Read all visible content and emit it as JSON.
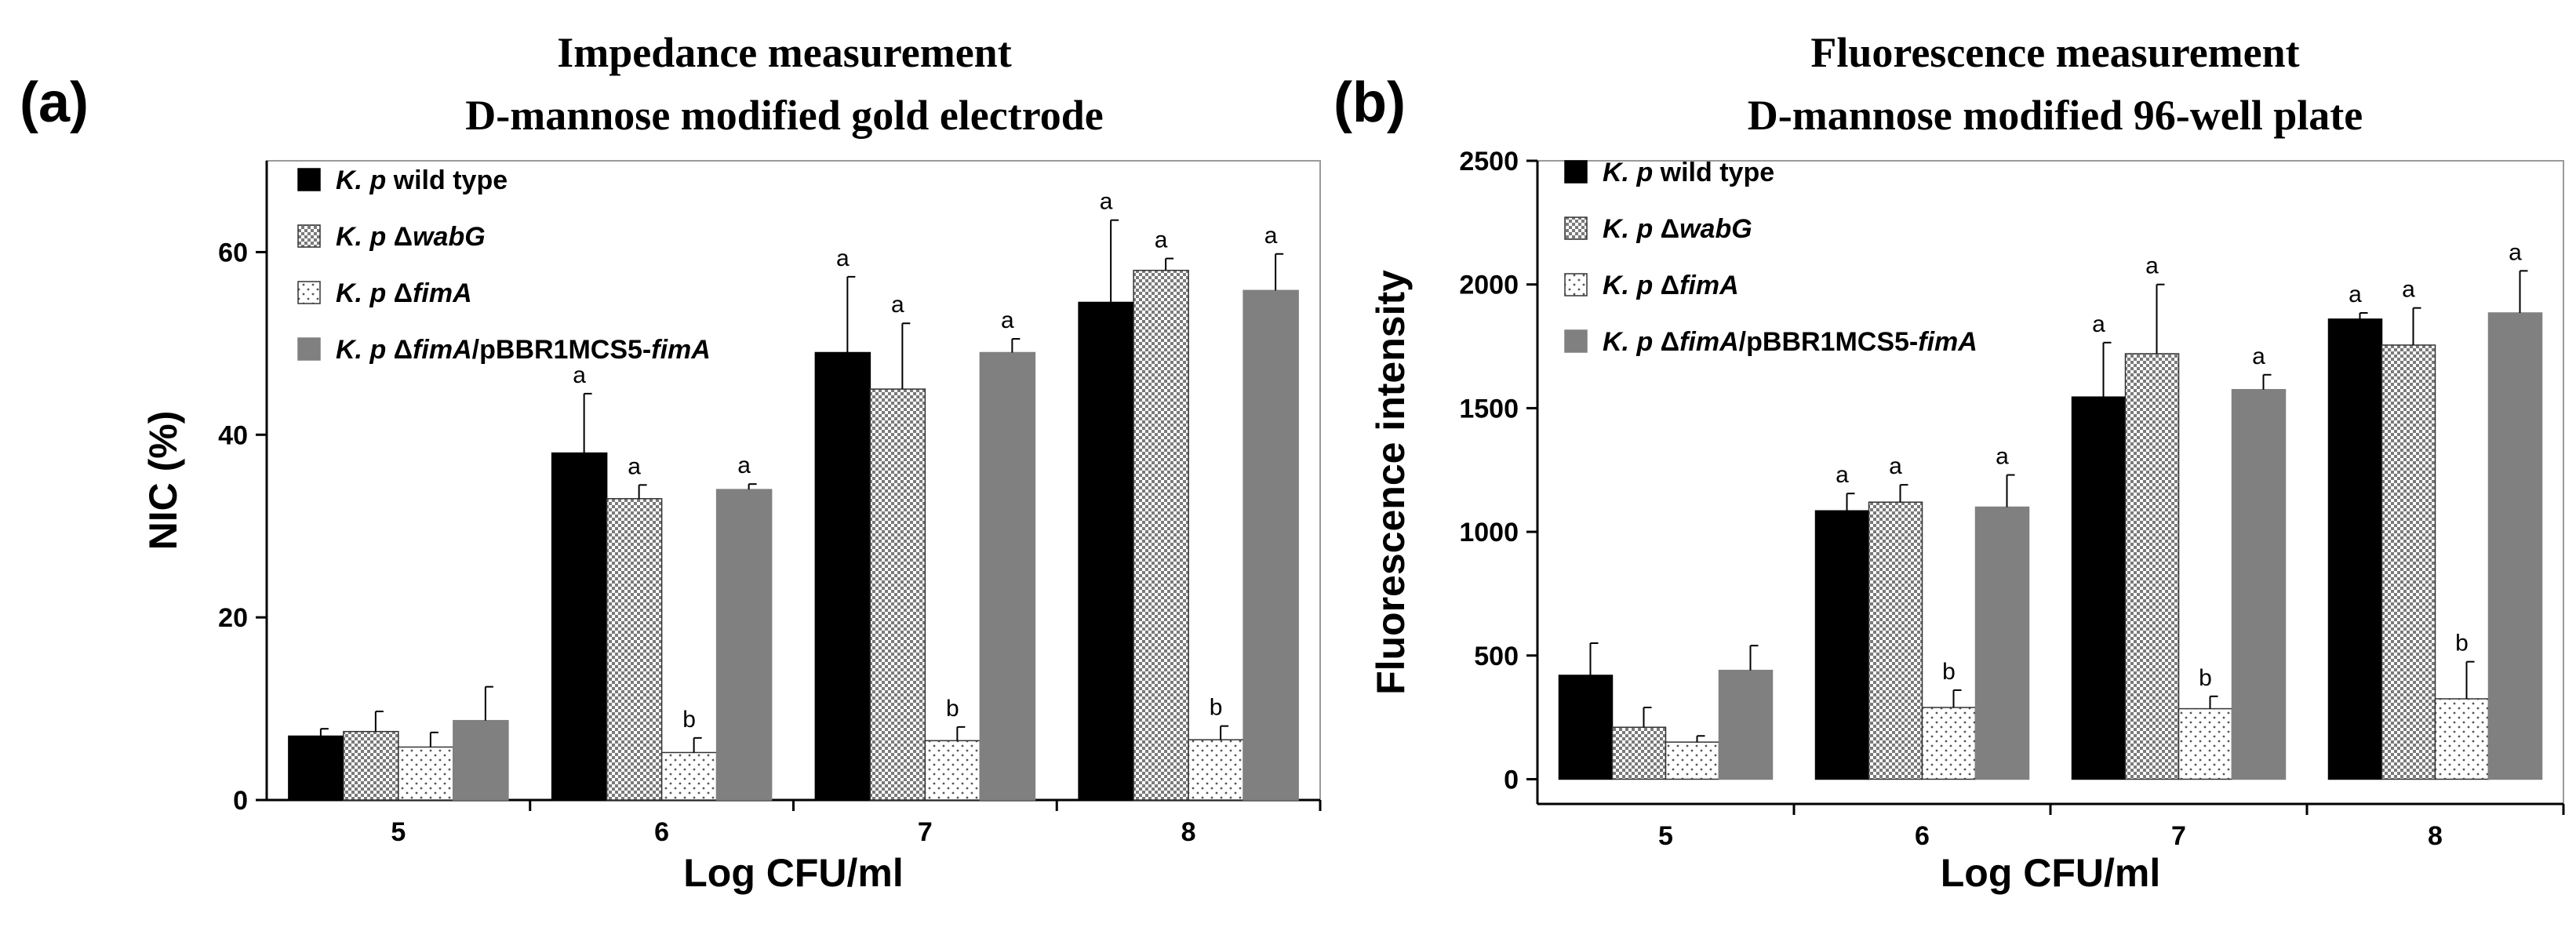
{
  "chart_data": [
    {
      "type": "bar",
      "panel_label": "(a)",
      "title": "Impedance measurement",
      "subtitle": "D-mannose modified gold electrode",
      "xlabel": "Log CFU/ml",
      "ylabel": "NIC (%)",
      "ylim": [
        0,
        70
      ],
      "yticks": [
        0,
        20,
        40,
        60
      ],
      "categories": [
        "5",
        "6",
        "7",
        "8"
      ],
      "legend_position": "top-left",
      "series": [
        {
          "name": "K. p wild type",
          "style": "black",
          "values": [
            7,
            38,
            49,
            54.5
          ],
          "errors": [
            0.8,
            6.5,
            8.3,
            9
          ],
          "labels": [
            "",
            "a",
            "a",
            "a"
          ]
        },
        {
          "name": "K. p ΔwabG",
          "style": "checker",
          "values": [
            7.5,
            33,
            45,
            58
          ],
          "errors": [
            2.2,
            1.5,
            7.2,
            1.3
          ],
          "labels": [
            "",
            "a",
            "a",
            "a"
          ]
        },
        {
          "name": "K. p ΔfimA",
          "style": "dots",
          "values": [
            5.8,
            5.2,
            6.5,
            6.6
          ],
          "errors": [
            1.6,
            1.6,
            1.5,
            1.5
          ],
          "labels": [
            "",
            "b",
            "b",
            "b"
          ]
        },
        {
          "name": "K. p ΔfimA/pBBR1MCS5-fimA",
          "style": "gray",
          "values": [
            8.7,
            34,
            49,
            55.8
          ],
          "errors": [
            3.7,
            0.6,
            1.5,
            4
          ],
          "labels": [
            "",
            "a",
            "a",
            "a"
          ]
        }
      ]
    },
    {
      "type": "bar",
      "panel_label": "(b)",
      "title": "Fluorescence measurement",
      "subtitle": "D-mannose modified 96-well plate",
      "xlabel": "Log CFU/ml",
      "ylabel": "Fluorescence intensity",
      "ylim": [
        -100,
        2500
      ],
      "yticks": [
        0,
        500,
        1000,
        1500,
        2000,
        2500
      ],
      "categories": [
        "5",
        "6",
        "7",
        "8"
      ],
      "legend_position": "top-left",
      "series": [
        {
          "name": "K. p wild type",
          "style": "black",
          "values": [
            420,
            1085,
            1545,
            1860
          ],
          "errors": [
            130,
            70,
            220,
            25
          ],
          "labels": [
            "",
            "a",
            "a",
            "a"
          ]
        },
        {
          "name": "K. p ΔwabG",
          "style": "checker",
          "values": [
            210,
            1120,
            1720,
            1755
          ],
          "errors": [
            80,
            70,
            280,
            150
          ],
          "labels": [
            "",
            "a",
            "a",
            "a"
          ]
        },
        {
          "name": "K. p ΔfimA",
          "style": "dots",
          "values": [
            150,
            290,
            285,
            325
          ],
          "errors": [
            25,
            70,
            50,
            150
          ],
          "labels": [
            "",
            "b",
            "b",
            "b"
          ]
        },
        {
          "name": "K. p ΔfimA/pBBR1MCS5-fimA",
          "style": "gray",
          "values": [
            440,
            1100,
            1575,
            1885
          ],
          "errors": [
            100,
            130,
            60,
            170
          ],
          "labels": [
            "",
            "a",
            "a",
            "a"
          ]
        }
      ]
    }
  ]
}
